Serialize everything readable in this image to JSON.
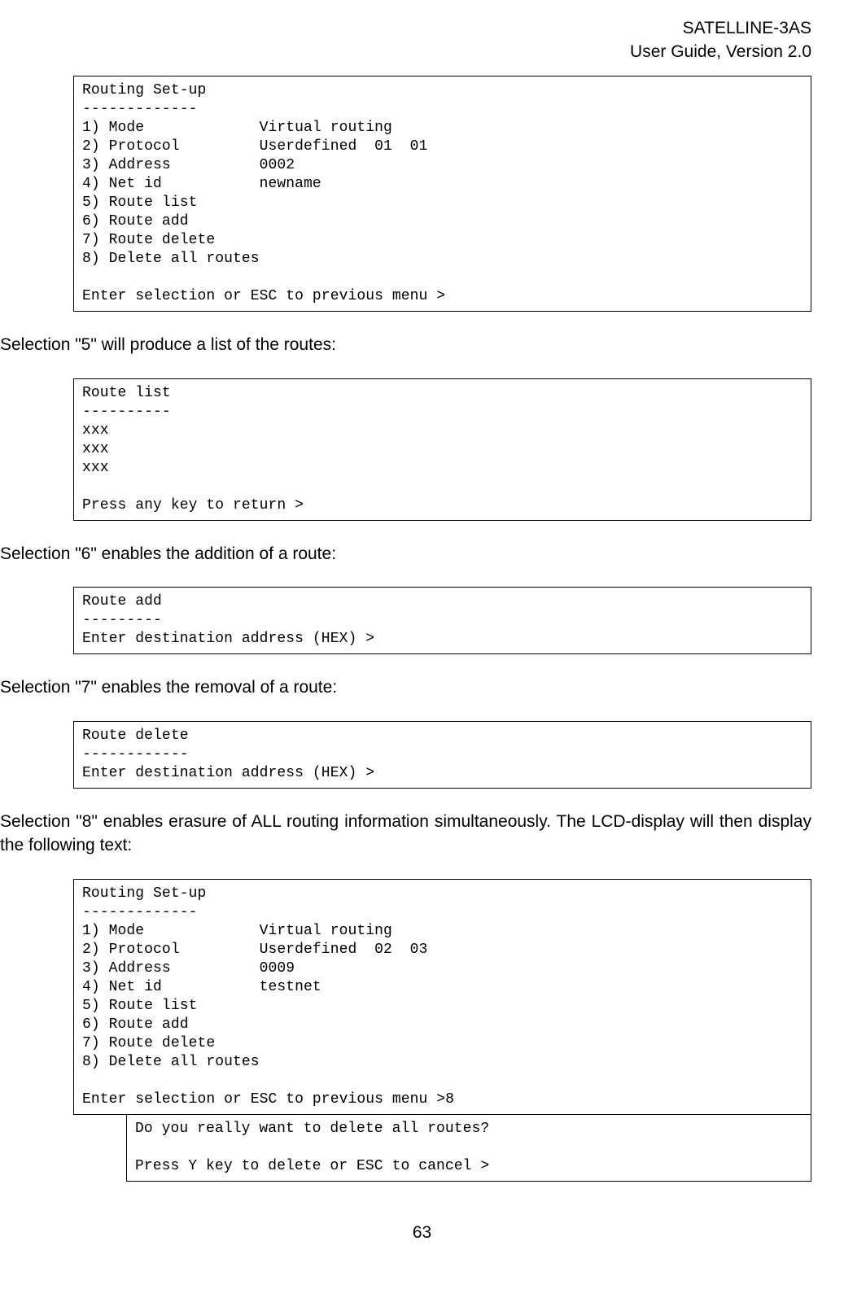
{
  "header": {
    "line1": "SATELLINE-3AS",
    "line2": "User Guide, Version 2.0"
  },
  "terminals": {
    "setup1": "Routing Set-up\n-------------\n1) Mode             Virtual routing\n2) Protocol         Userdefined  01  01\n3) Address          0002\n4) Net id           newname\n5) Route list\n6) Route add\n7) Route delete\n8) Delete all routes\n\nEnter selection or ESC to previous menu >",
    "routelist": "Route list\n----------\nxxx\nxxx\nxxx\n\nPress any key to return >",
    "routeadd": "Route add\n---------\nEnter destination address (HEX) >",
    "routedelete": "Route delete\n------------\nEnter destination address (HEX) >",
    "setup2": "Routing Set-up\n-------------\n1) Mode             Virtual routing\n2) Protocol         Userdefined  02  03\n3) Address          0009\n4) Net id           testnet\n5) Route list\n6) Route add\n7) Route delete\n8) Delete all routes\n\nEnter selection or ESC to previous menu >8",
    "confirm": "Do you really want to delete all routes?\n\nPress Y key to delete or ESC to cancel >"
  },
  "paragraphs": {
    "p1": "Selection \"5\" will produce a list of the routes:",
    "p2": "Selection \"6\" enables the addition of a route:",
    "p3": "Selection \"7\" enables the removal of a route:",
    "p4": "Selection \"8\" enables erasure of ALL routing information simultaneously. The LCD-display will then display the following text:"
  },
  "pageNumber": "63"
}
